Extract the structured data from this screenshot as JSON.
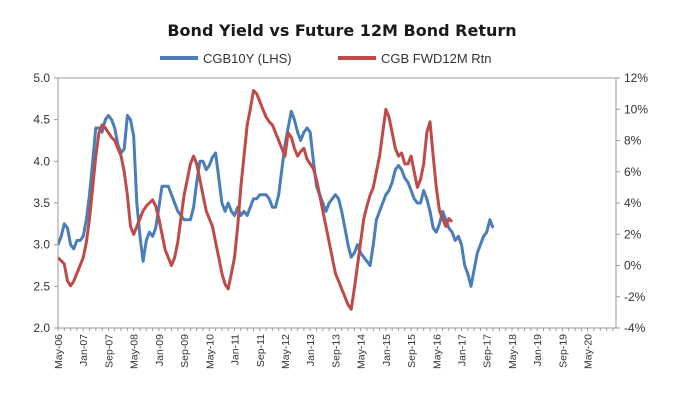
{
  "chart_data": {
    "type": "line",
    "title": "Bond Yield vs Future 12M Bond Return",
    "legend": [
      {
        "name": "CGB10Y (LHS)",
        "color": "#4a7ebb"
      },
      {
        "name": "CGB FWD12M Rtn",
        "color": "#be4b48"
      }
    ],
    "legend_position": "top",
    "x_ticks": [
      "May-06",
      "Jan-07",
      "Sep-07",
      "May-08",
      "Jan-09",
      "Sep-09",
      "May-10",
      "Jan-11",
      "Sep-11",
      "May-12",
      "Jan-13",
      "Sep-13",
      "May-14",
      "Jan-15",
      "Sep-15",
      "May-16",
      "Jan-17",
      "Sep-17",
      "May-18",
      "Jan-19",
      "Sep-19",
      "May-20"
    ],
    "x_range_months": [
      0,
      177
    ],
    "y_left": {
      "range": [
        2.0,
        5.0
      ],
      "ticks": [
        "2.0",
        "2.5",
        "3.0",
        "3.5",
        "4.0",
        "4.5",
        "5.0"
      ]
    },
    "y_right": {
      "range": [
        -4,
        12
      ],
      "ticks": [
        "-4%",
        "-2%",
        "0%",
        "2%",
        "4%",
        "6%",
        "8%",
        "10%",
        "12%"
      ]
    },
    "series": [
      {
        "name": "CGB10Y (LHS)",
        "axis": "left",
        "color": "#4a7ebb",
        "points": [
          [
            0,
            3.0
          ],
          [
            1,
            3.1
          ],
          [
            2,
            3.25
          ],
          [
            3,
            3.2
          ],
          [
            4,
            3.0
          ],
          [
            5,
            2.95
          ],
          [
            6,
            3.05
          ],
          [
            7,
            3.05
          ],
          [
            8,
            3.1
          ],
          [
            9,
            3.3
          ],
          [
            10,
            3.6
          ],
          [
            11,
            4.0
          ],
          [
            12,
            4.4
          ],
          [
            13,
            4.4
          ],
          [
            14,
            4.35
          ],
          [
            15,
            4.5
          ],
          [
            16,
            4.55
          ],
          [
            17,
            4.5
          ],
          [
            18,
            4.4
          ],
          [
            19,
            4.2
          ],
          [
            20,
            4.1
          ],
          [
            21,
            4.15
          ],
          [
            22,
            4.55
          ],
          [
            23,
            4.5
          ],
          [
            24,
            4.3
          ],
          [
            25,
            3.5
          ],
          [
            26,
            3.1
          ],
          [
            27,
            2.8
          ],
          [
            28,
            3.05
          ],
          [
            29,
            3.15
          ],
          [
            30,
            3.1
          ],
          [
            31,
            3.2
          ],
          [
            32,
            3.45
          ],
          [
            33,
            3.7
          ],
          [
            34,
            3.7
          ],
          [
            35,
            3.7
          ],
          [
            36,
            3.6
          ],
          [
            37,
            3.5
          ],
          [
            38,
            3.4
          ],
          [
            39,
            3.35
          ],
          [
            40,
            3.3
          ],
          [
            41,
            3.3
          ],
          [
            42,
            3.3
          ],
          [
            43,
            3.45
          ],
          [
            44,
            3.75
          ],
          [
            45,
            4.0
          ],
          [
            46,
            4.0
          ],
          [
            47,
            3.9
          ],
          [
            48,
            3.95
          ],
          [
            49,
            4.05
          ],
          [
            50,
            4.1
          ],
          [
            51,
            3.8
          ],
          [
            52,
            3.5
          ],
          [
            53,
            3.4
          ],
          [
            54,
            3.5
          ],
          [
            55,
            3.4
          ],
          [
            56,
            3.35
          ],
          [
            57,
            3.45
          ],
          [
            58,
            3.35
          ],
          [
            59,
            3.4
          ],
          [
            60,
            3.35
          ],
          [
            61,
            3.45
          ],
          [
            62,
            3.55
          ],
          [
            63,
            3.55
          ],
          [
            64,
            3.6
          ],
          [
            65,
            3.6
          ],
          [
            66,
            3.6
          ],
          [
            67,
            3.55
          ],
          [
            68,
            3.45
          ],
          [
            69,
            3.45
          ],
          [
            70,
            3.6
          ],
          [
            71,
            3.9
          ],
          [
            72,
            4.2
          ],
          [
            73,
            4.4
          ],
          [
            74,
            4.6
          ],
          [
            75,
            4.5
          ],
          [
            76,
            4.35
          ],
          [
            77,
            4.25
          ],
          [
            78,
            4.35
          ],
          [
            79,
            4.4
          ],
          [
            80,
            4.35
          ],
          [
            81,
            4.0
          ],
          [
            82,
            3.7
          ],
          [
            83,
            3.6
          ],
          [
            84,
            3.5
          ],
          [
            85,
            3.4
          ],
          [
            86,
            3.5
          ],
          [
            87,
            3.55
          ],
          [
            88,
            3.6
          ],
          [
            89,
            3.55
          ],
          [
            90,
            3.4
          ],
          [
            91,
            3.2
          ],
          [
            92,
            3.0
          ],
          [
            93,
            2.85
          ],
          [
            94,
            2.9
          ],
          [
            95,
            3.0
          ],
          [
            96,
            2.9
          ],
          [
            97,
            2.85
          ],
          [
            98,
            2.8
          ],
          [
            99,
            2.75
          ],
          [
            100,
            3.0
          ],
          [
            101,
            3.3
          ],
          [
            102,
            3.4
          ],
          [
            103,
            3.5
          ],
          [
            104,
            3.6
          ],
          [
            105,
            3.65
          ],
          [
            106,
            3.75
          ],
          [
            107,
            3.9
          ],
          [
            108,
            3.95
          ],
          [
            109,
            3.9
          ],
          [
            110,
            3.8
          ],
          [
            111,
            3.75
          ],
          [
            112,
            3.65
          ],
          [
            113,
            3.55
          ],
          [
            114,
            3.5
          ],
          [
            115,
            3.5
          ],
          [
            116,
            3.65
          ],
          [
            117,
            3.55
          ],
          [
            118,
            3.4
          ],
          [
            119,
            3.2
          ],
          [
            120,
            3.15
          ],
          [
            121,
            3.25
          ],
          [
            122,
            3.4
          ],
          [
            123,
            3.3
          ],
          [
            124,
            3.2
          ],
          [
            125,
            3.15
          ],
          [
            126,
            3.05
          ],
          [
            127,
            3.1
          ],
          [
            128,
            3.0
          ],
          [
            129,
            2.75
          ],
          [
            130,
            2.65
          ],
          [
            131,
            2.5
          ],
          [
            132,
            2.7
          ],
          [
            133,
            2.9
          ],
          [
            134,
            3.0
          ],
          [
            135,
            3.1
          ],
          [
            136,
            3.15
          ],
          [
            137,
            3.3
          ],
          [
            138,
            3.2
          ]
        ]
      },
      {
        "name": "CGB FWD12M Rtn",
        "axis": "right",
        "color": "#be4b48",
        "points": [
          [
            0,
            0.5
          ],
          [
            1,
            0.3
          ],
          [
            2,
            0.1
          ],
          [
            3,
            -1.0
          ],
          [
            4,
            -1.3
          ],
          [
            5,
            -1.0
          ],
          [
            6,
            -0.5
          ],
          [
            7,
            0.0
          ],
          [
            8,
            0.5
          ],
          [
            9,
            1.5
          ],
          [
            10,
            3.0
          ],
          [
            11,
            5.0
          ],
          [
            12,
            7.0
          ],
          [
            13,
            8.5
          ],
          [
            14,
            9.0
          ],
          [
            15,
            8.8
          ],
          [
            16,
            8.5
          ],
          [
            17,
            8.2
          ],
          [
            18,
            8.0
          ],
          [
            19,
            7.5
          ],
          [
            20,
            7.0
          ],
          [
            21,
            6.0
          ],
          [
            22,
            4.5
          ],
          [
            23,
            2.5
          ],
          [
            24,
            2.0
          ],
          [
            25,
            2.5
          ],
          [
            26,
            3.0
          ],
          [
            27,
            3.5
          ],
          [
            28,
            3.8
          ],
          [
            29,
            4.0
          ],
          [
            30,
            4.2
          ],
          [
            31,
            3.8
          ],
          [
            32,
            3.0
          ],
          [
            33,
            2.0
          ],
          [
            34,
            1.0
          ],
          [
            35,
            0.5
          ],
          [
            36,
            0.0
          ],
          [
            37,
            0.5
          ],
          [
            38,
            1.5
          ],
          [
            39,
            3.0
          ],
          [
            40,
            4.5
          ],
          [
            41,
            5.5
          ],
          [
            42,
            6.5
          ],
          [
            43,
            7.0
          ],
          [
            44,
            6.5
          ],
          [
            45,
            5.5
          ],
          [
            46,
            4.5
          ],
          [
            47,
            3.5
          ],
          [
            48,
            3.0
          ],
          [
            49,
            2.5
          ],
          [
            50,
            1.5
          ],
          [
            51,
            0.5
          ],
          [
            52,
            -0.5
          ],
          [
            53,
            -1.2
          ],
          [
            54,
            -1.5
          ],
          [
            55,
            -0.5
          ],
          [
            56,
            0.5
          ],
          [
            57,
            2.5
          ],
          [
            58,
            5.0
          ],
          [
            59,
            7.0
          ],
          [
            60,
            9.0
          ],
          [
            61,
            10.0
          ],
          [
            62,
            11.2
          ],
          [
            63,
            11.0
          ],
          [
            64,
            10.5
          ],
          [
            65,
            10.0
          ],
          [
            66,
            9.5
          ],
          [
            67,
            9.2
          ],
          [
            68,
            9.0
          ],
          [
            69,
            8.5
          ],
          [
            70,
            8.0
          ],
          [
            71,
            7.5
          ],
          [
            72,
            7.0
          ],
          [
            73,
            8.5
          ],
          [
            74,
            8.2
          ],
          [
            75,
            7.5
          ],
          [
            76,
            7.0
          ],
          [
            77,
            7.3
          ],
          [
            78,
            7.5
          ],
          [
            79,
            6.8
          ],
          [
            80,
            6.5
          ],
          [
            81,
            6.2
          ],
          [
            82,
            5.5
          ],
          [
            83,
            4.5
          ],
          [
            84,
            3.5
          ],
          [
            85,
            2.5
          ],
          [
            86,
            1.5
          ],
          [
            87,
            0.5
          ],
          [
            88,
            -0.5
          ],
          [
            89,
            -1.0
          ],
          [
            90,
            -1.5
          ],
          [
            91,
            -2.0
          ],
          [
            92,
            -2.5
          ],
          [
            93,
            -2.8
          ],
          [
            94,
            -1.5
          ],
          [
            95,
            0.0
          ],
          [
            96,
            1.5
          ],
          [
            97,
            3.0
          ],
          [
            98,
            3.8
          ],
          [
            99,
            4.5
          ],
          [
            100,
            5.0
          ],
          [
            101,
            6.0
          ],
          [
            102,
            7.0
          ],
          [
            103,
            8.5
          ],
          [
            104,
            10.0
          ],
          [
            105,
            9.5
          ],
          [
            106,
            8.5
          ],
          [
            107,
            7.5
          ],
          [
            108,
            7.0
          ],
          [
            109,
            7.2
          ],
          [
            110,
            6.5
          ],
          [
            111,
            6.5
          ],
          [
            112,
            7.0
          ],
          [
            113,
            6.0
          ],
          [
            114,
            5.0
          ],
          [
            115,
            5.5
          ],
          [
            116,
            6.5
          ],
          [
            117,
            8.5
          ],
          [
            118,
            9.2
          ],
          [
            119,
            7.0
          ],
          [
            120,
            5.0
          ],
          [
            121,
            3.5
          ],
          [
            122,
            3.0
          ],
          [
            123,
            2.5
          ],
          [
            124,
            3.0
          ],
          [
            125,
            2.8
          ]
        ]
      }
    ],
    "grid": false
  }
}
